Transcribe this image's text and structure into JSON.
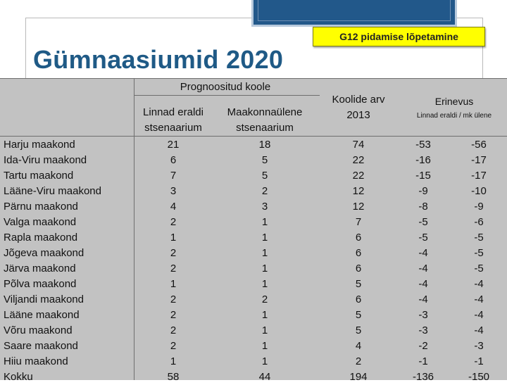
{
  "slide": {
    "title": "Gümnaasiumid 2020",
    "badge": "G12 pidamise lõpetamine"
  },
  "table": {
    "header": {
      "prognoositud": "Prognoositud koole",
      "linnad_line1": "Linnad eraldi",
      "linnad_line2": "stsenaarium",
      "maakond_line1": "Maakonnaülene",
      "maakond_line2": "stsenaarium",
      "koolide_line1": "Koolide arv",
      "koolide_line2": "2013",
      "erinevus": "Erinevus",
      "erinevus_sub": "Linnad eraldi / mk ülene"
    },
    "rows": [
      {
        "name": "Harju maakond",
        "linnad": "21",
        "maakond": "18",
        "koolid": "74",
        "diff_linnad": "-53",
        "diff_mk": "-56"
      },
      {
        "name": "Ida-Viru maakond",
        "linnad": "6",
        "maakond": "5",
        "koolid": "22",
        "diff_linnad": "-16",
        "diff_mk": "-17"
      },
      {
        "name": "Tartu maakond",
        "linnad": "7",
        "maakond": "5",
        "koolid": "22",
        "diff_linnad": "-15",
        "diff_mk": "-17"
      },
      {
        "name": "Lääne-Viru maakond",
        "linnad": "3",
        "maakond": "2",
        "koolid": "12",
        "diff_linnad": "-9",
        "diff_mk": "-10"
      },
      {
        "name": "Pärnu maakond",
        "linnad": "4",
        "maakond": "3",
        "koolid": "12",
        "diff_linnad": "-8",
        "diff_mk": "-9"
      },
      {
        "name": "Valga maakond",
        "linnad": "2",
        "maakond": "1",
        "koolid": "7",
        "diff_linnad": "-5",
        "diff_mk": "-6"
      },
      {
        "name": "Rapla maakond",
        "linnad": "1",
        "maakond": "1",
        "koolid": "6",
        "diff_linnad": "-5",
        "diff_mk": "-5"
      },
      {
        "name": "Jõgeva maakond",
        "linnad": "2",
        "maakond": "1",
        "koolid": "6",
        "diff_linnad": "-4",
        "diff_mk": "-5"
      },
      {
        "name": "Järva maakond",
        "linnad": "2",
        "maakond": "1",
        "koolid": "6",
        "diff_linnad": "-4",
        "diff_mk": "-5"
      },
      {
        "name": "Põlva maakond",
        "linnad": "1",
        "maakond": "1",
        "koolid": "5",
        "diff_linnad": "-4",
        "diff_mk": "-4"
      },
      {
        "name": "Viljandi maakond",
        "linnad": "2",
        "maakond": "2",
        "koolid": "6",
        "diff_linnad": "-4",
        "diff_mk": "-4"
      },
      {
        "name": "Lääne maakond",
        "linnad": "2",
        "maakond": "1",
        "koolid": "5",
        "diff_linnad": "-3",
        "diff_mk": "-4"
      },
      {
        "name": "Võru maakond",
        "linnad": "2",
        "maakond": "1",
        "koolid": "5",
        "diff_linnad": "-3",
        "diff_mk": "-4"
      },
      {
        "name": "Saare maakond",
        "linnad": "2",
        "maakond": "1",
        "koolid": "4",
        "diff_linnad": "-2",
        "diff_mk": "-3"
      },
      {
        "name": "Hiiu maakond",
        "linnad": "1",
        "maakond": "1",
        "koolid": "2",
        "diff_linnad": "-1",
        "diff_mk": "-1"
      },
      {
        "name": "Kokku",
        "linnad": "58",
        "maakond": "44",
        "koolid": "194",
        "diff_linnad": "-136",
        "diff_mk": "-150"
      }
    ]
  },
  "colors": {
    "title": "#1f5a86",
    "badge": "#ffff00",
    "table_bg": "#c2c2c2",
    "logo_block": "#22588a"
  }
}
